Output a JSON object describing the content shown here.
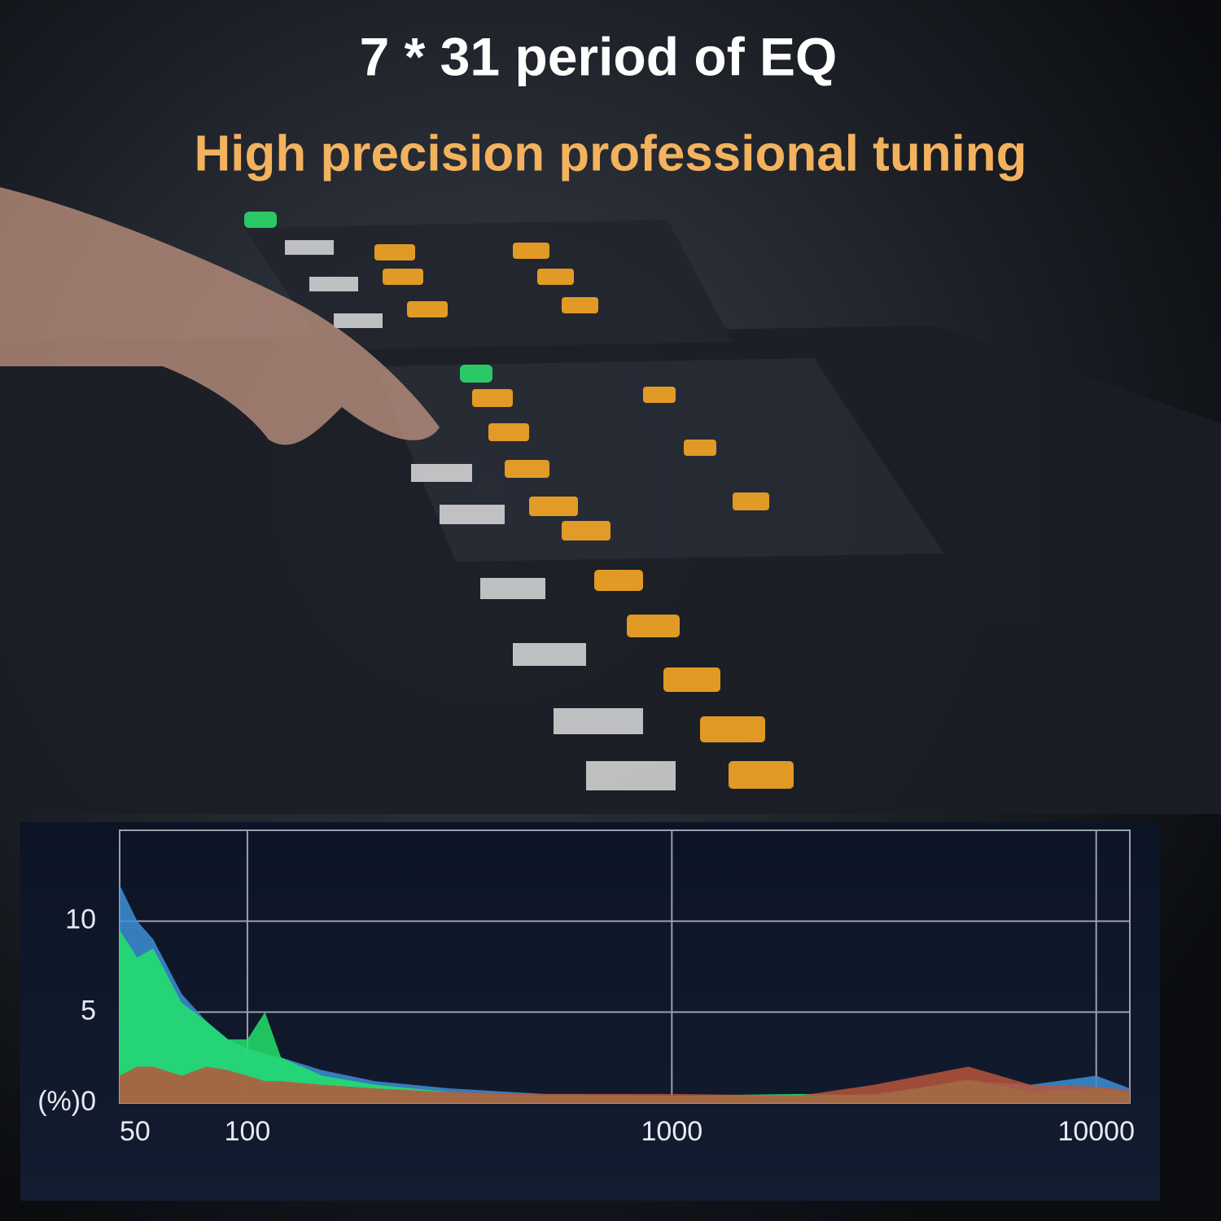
{
  "chart_data": {
    "type": "area",
    "title": "7 * 31 period of EQ",
    "subtitle": "High precision professional tuning",
    "x": [
      50,
      55,
      60,
      70,
      80,
      90,
      100,
      110,
      120,
      150,
      200,
      300,
      500,
      1000,
      2000,
      3000,
      5000,
      7000,
      10000,
      12000
    ],
    "series": [
      {
        "color": "#3d8fd6",
        "values": [
          12,
          10,
          9,
          6,
          4.5,
          3.5,
          3,
          2.7,
          2.5,
          1.8,
          1.2,
          0.8,
          0.5,
          0.4,
          0.4,
          0.5,
          1.2,
          1.0,
          1.5,
          0.8
        ]
      },
      {
        "color": "#22e36a",
        "values": [
          9.5,
          8,
          8.5,
          5.5,
          4.5,
          3.5,
          3.5,
          5,
          2.5,
          1.5,
          1,
          0.6,
          0.4,
          0.4,
          0.5,
          0.4,
          1.3,
          0.6,
          0.8,
          0.6
        ]
      },
      {
        "color": "#b8553c",
        "values": [
          1.5,
          2,
          2,
          1.5,
          2,
          1.8,
          1.5,
          1.2,
          1.2,
          1,
          0.8,
          0.6,
          0.5,
          0.5,
          0.4,
          1.0,
          2.0,
          1.0,
          0.9,
          0.7
        ]
      }
    ],
    "xscale": "log",
    "xlim": [
      50,
      12000
    ],
    "xticks": [
      50,
      100,
      1000,
      10000
    ],
    "ylim": [
      0,
      15
    ],
    "yticks": [
      {
        "value": 0,
        "label": "(%)0"
      },
      5,
      10
    ],
    "grid": true
  }
}
